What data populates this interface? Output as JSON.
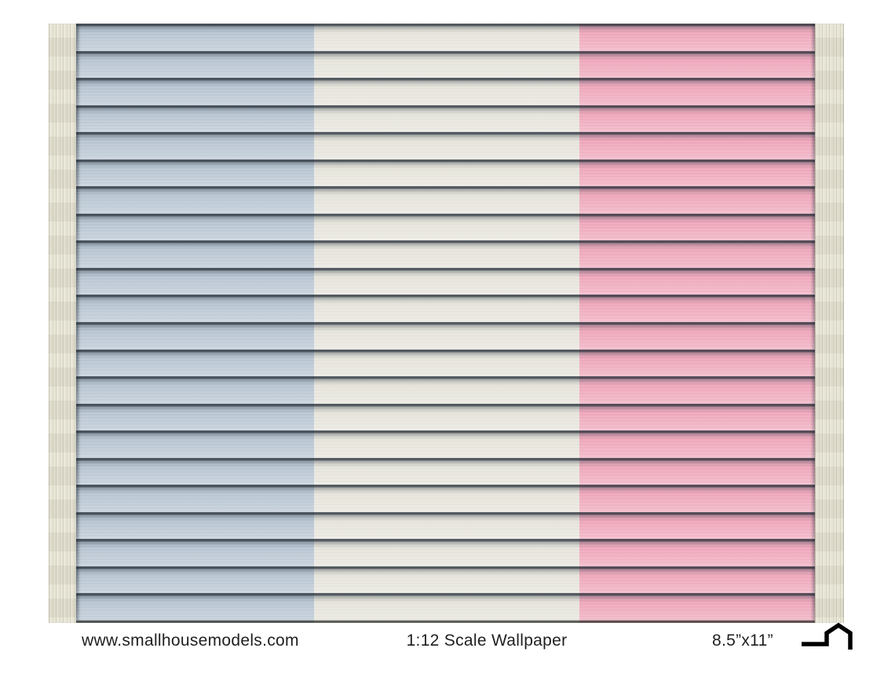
{
  "sheet": {
    "board_count": 22,
    "panels": [
      {
        "name": "blue-clapboard-panel",
        "color": "#bac7d4"
      },
      {
        "name": "white-clapboard-panel",
        "color": "#e7e5dc"
      },
      {
        "name": "pink-clapboard-panel",
        "color": "#f0a9bd"
      }
    ],
    "blue_end": "32.2%",
    "pink_start": "68.1%",
    "trim_color": "#e6e3d3",
    "shadow_line_color": "#32404e"
  },
  "footer": {
    "website": "www.smallhousemodels.com",
    "scale_label": "1:12 Scale Wallpaper",
    "size_label": "8.5”x11”",
    "icon": "house-icon"
  },
  "theme": {
    "page_bg": "#ffffff",
    "text_color": "#1f1f1f"
  }
}
